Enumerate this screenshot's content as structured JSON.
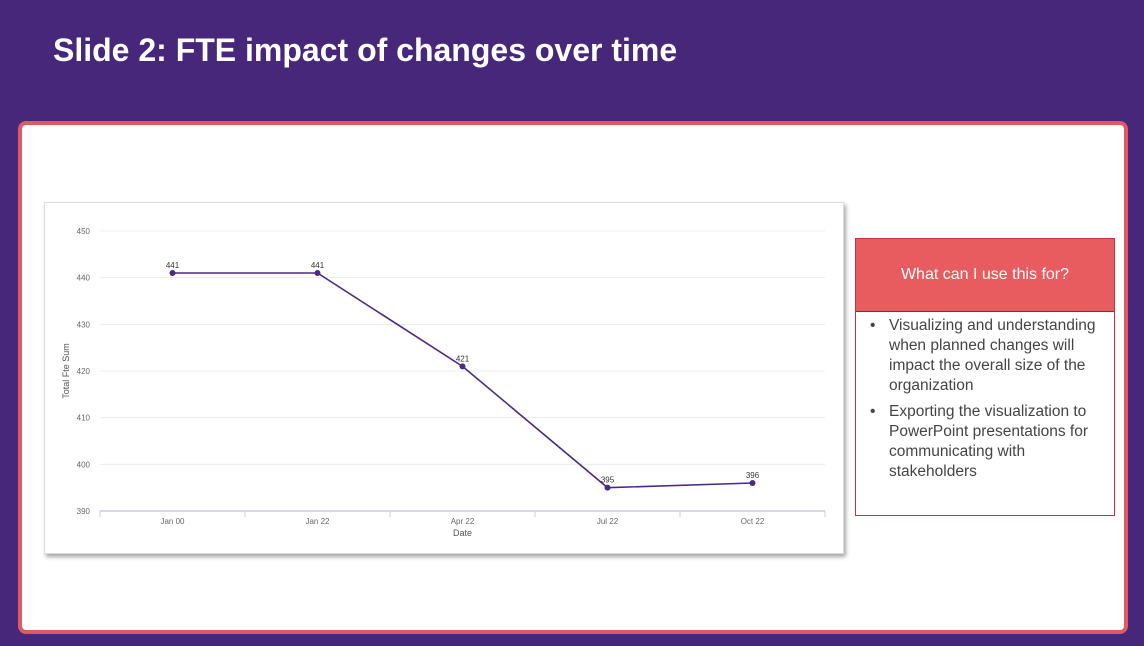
{
  "slide": {
    "title": "Slide 2: FTE impact of changes over time"
  },
  "info_box": {
    "heading": "What can I use this for?",
    "bullets": [
      "Visualizing and understanding when planned changes will impact the overall size of the organization",
      "Exporting the visualization to PowerPoint presentations for communicating with stakeholders"
    ]
  },
  "colors": {
    "background": "#47277a",
    "panel_border": "#e05a64",
    "line": "#4b2a84",
    "info_header": "#e85c60"
  },
  "chart_data": {
    "type": "line",
    "title": "",
    "xlabel": "Date",
    "ylabel": "Total Fte Sum",
    "categories": [
      "Jan 00",
      "Jan 22",
      "Apr 22",
      "Jul 22",
      "Oct 22"
    ],
    "values": [
      441,
      441,
      421,
      395,
      396
    ],
    "ylim": [
      390,
      450
    ],
    "yticks": [
      390,
      400,
      410,
      420,
      430,
      440,
      450
    ],
    "grid": true,
    "legend": "none"
  }
}
